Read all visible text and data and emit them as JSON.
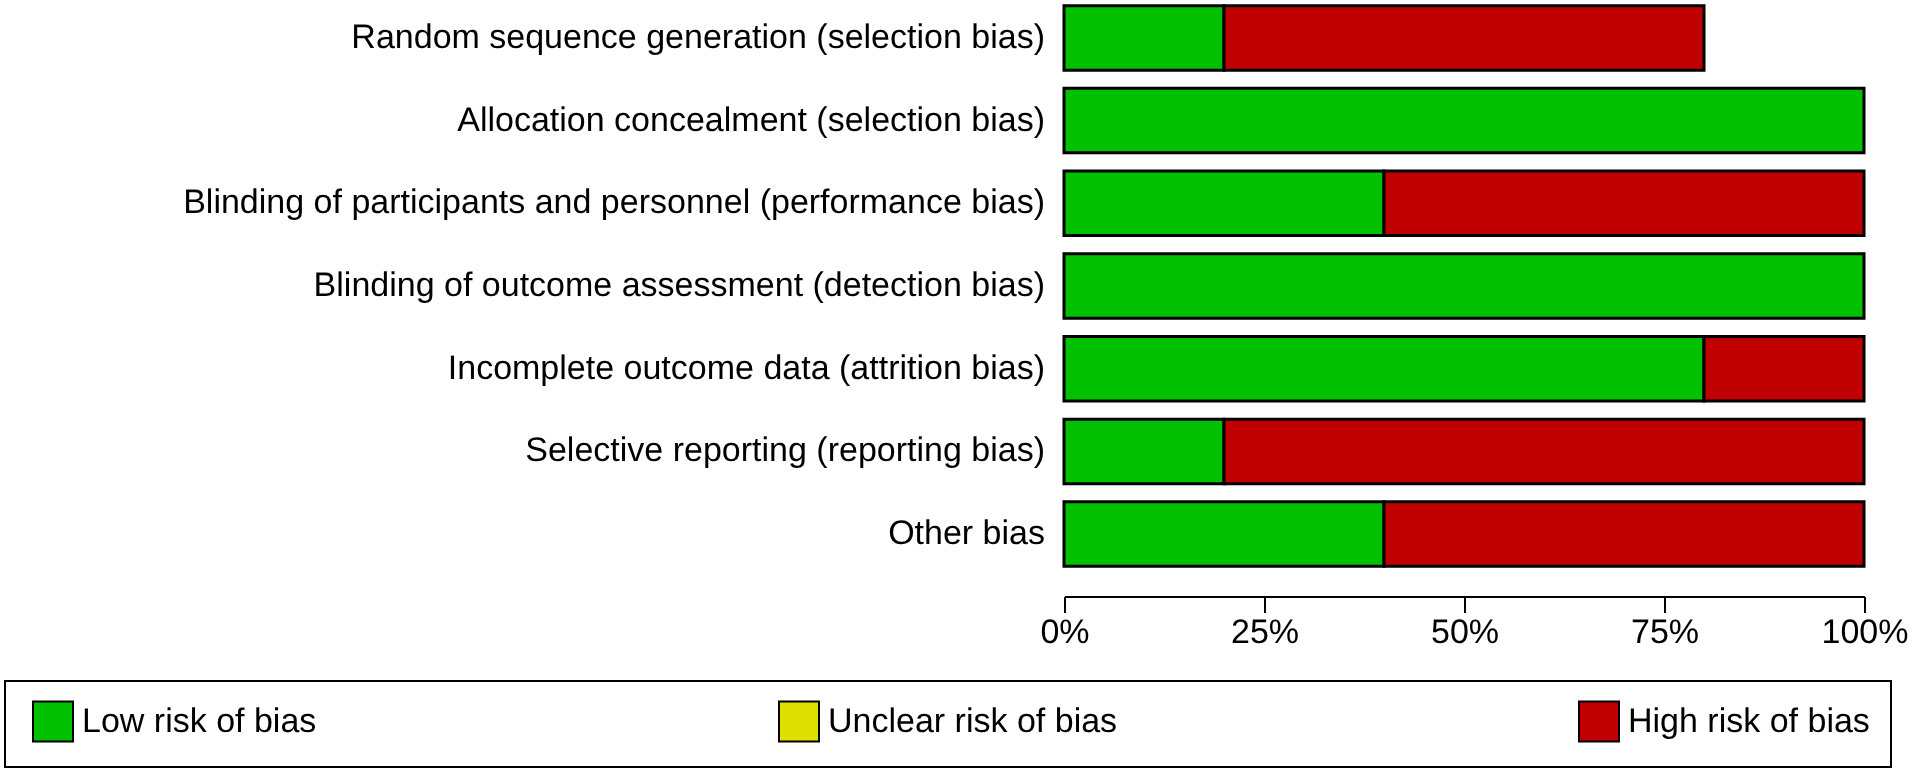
{
  "chart_data": {
    "type": "bar",
    "orientation": "horizontal",
    "stacked": true,
    "categories": [
      "Random sequence generation (selection bias)",
      "Allocation concealment (selection bias)",
      "Blinding of participants and personnel (performance bias)",
      "Blinding of outcome assessment (detection bias)",
      "Incomplete outcome data (attrition bias)",
      "Selective reporting (reporting bias)",
      "Other bias"
    ],
    "series": [
      {
        "name": "Low risk of bias",
        "color": "#00c000",
        "values": [
          20,
          100,
          40,
          100,
          80,
          20,
          40
        ]
      },
      {
        "name": "Unclear risk of bias",
        "color": "#e0e000",
        "values": [
          0,
          0,
          0,
          0,
          0,
          0,
          0
        ]
      },
      {
        "name": "High risk of bias",
        "color": "#c00000",
        "values": [
          60,
          0,
          60,
          0,
          20,
          80,
          60
        ]
      }
    ],
    "xlim": [
      0,
      100
    ],
    "xticks": [
      {
        "value": 0,
        "label": "0%"
      },
      {
        "value": 25,
        "label": "25%"
      },
      {
        "value": 50,
        "label": "50%"
      },
      {
        "value": 75,
        "label": "75%"
      },
      {
        "value": 100,
        "label": "100%"
      }
    ],
    "grid": false,
    "legend": "bottom"
  }
}
